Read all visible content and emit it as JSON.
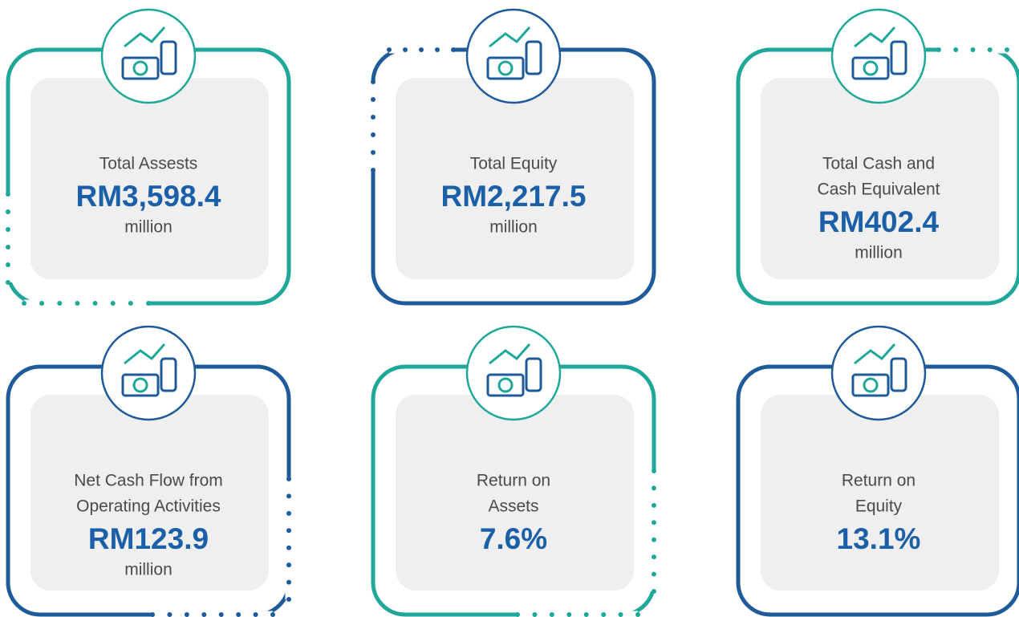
{
  "cards": [
    {
      "label": [
        "Total Assests"
      ],
      "value": "RM3,598.4",
      "unit": "million"
    },
    {
      "label": [
        "Total Equity"
      ],
      "value": "RM2,217.5",
      "unit": "million"
    },
    {
      "label": [
        "Total Cash and",
        "Cash Equivalent"
      ],
      "value": "RM402.4",
      "unit": "million"
    },
    {
      "label": [
        "Net Cash Flow from",
        "Operating Activities"
      ],
      "value": "RM123.9",
      "unit": "million"
    },
    {
      "label": [
        "Return on",
        "Assets"
      ],
      "value": "7.6%"
    },
    {
      "label": [
        "Return on",
        "Equity"
      ],
      "value": "13.1%"
    }
  ]
}
